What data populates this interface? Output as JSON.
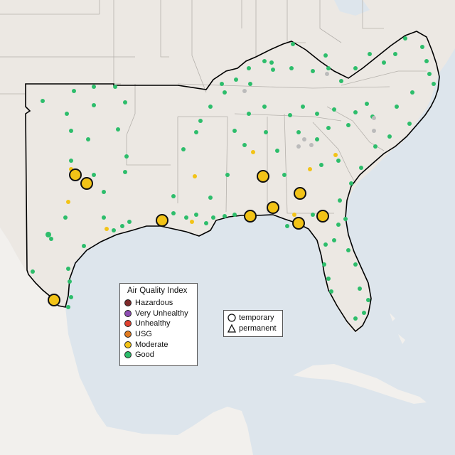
{
  "colors": {
    "water": "#dde5ec",
    "land": "#ece8e3",
    "land_foreign": "#f2f0ed",
    "border": "#b5b1ac",
    "region_outline": "#000000"
  },
  "legend": {
    "title": "Air Quality Index",
    "items": [
      {
        "label": "Hazardous",
        "color": "#7e2a2a"
      },
      {
        "label": "Very Unhealthy",
        "color": "#8e4db3"
      },
      {
        "label": "Unhealthy",
        "color": "#e0412f"
      },
      {
        "label": "USG",
        "color": "#e07a1f"
      },
      {
        "label": "Moderate",
        "color": "#f2c317"
      },
      {
        "label": "Good",
        "color": "#2dbd6b"
      }
    ]
  },
  "monitor_types": {
    "items": [
      {
        "label": "temporary",
        "icon": "circle-outline-icon"
      },
      {
        "label": "permanent",
        "icon": "triangle-outline-icon"
      }
    ]
  }
}
